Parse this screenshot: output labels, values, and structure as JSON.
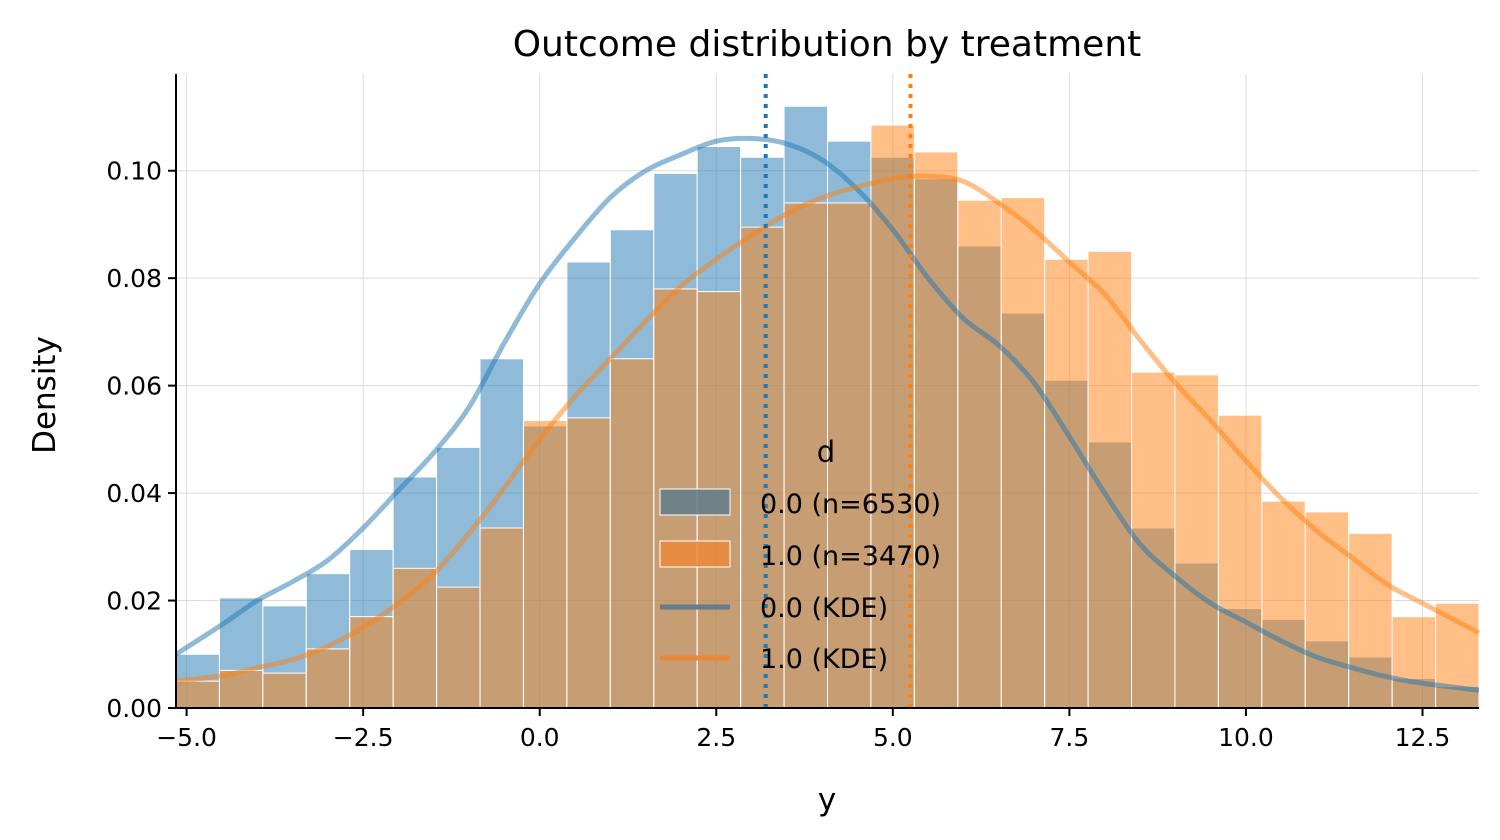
{
  "chart_data": {
    "type": "bar",
    "title": "Outcome distribution by treatment",
    "xlabel": "y",
    "ylabel": "Density",
    "xlim": [
      -5.15,
      13.3
    ],
    "ylim": [
      0,
      0.118
    ],
    "grid": true,
    "bin_start": -5.15,
    "bin_width": 0.615,
    "xticks": [
      -5.0,
      -2.5,
      0.0,
      2.5,
      5.0,
      7.5,
      10.0,
      12.5
    ],
    "xtick_labels": [
      "−5.0",
      "−2.5",
      "0.0",
      "2.5",
      "5.0",
      "7.5",
      "10.0",
      "12.5"
    ],
    "yticks": [
      0.0,
      0.02,
      0.04,
      0.06,
      0.08,
      0.1
    ],
    "ytick_labels": [
      "0.00",
      "0.02",
      "0.04",
      "0.06",
      "0.08",
      "0.10"
    ],
    "series": [
      {
        "name": "0.0",
        "color": "#1f77b4",
        "n": 6530,
        "mean_line": 3.2,
        "hist": [
          0.01,
          0.0205,
          0.019,
          0.025,
          0.0295,
          0.043,
          0.0485,
          0.065,
          0.0525,
          0.083,
          0.089,
          0.0995,
          0.1045,
          0.1025,
          0.112,
          0.1055,
          0.1025,
          0.0985,
          0.086,
          0.0735,
          0.061,
          0.0495,
          0.0335,
          0.027,
          0.0185,
          0.0165,
          0.0125,
          0.0095,
          0.0055,
          0.004
        ],
        "kde_x": [
          -5.15,
          -4.5,
          -4.0,
          -3.5,
          -3.0,
          -2.5,
          -2.0,
          -1.5,
          -1.0,
          -0.5,
          0.0,
          0.5,
          1.0,
          1.5,
          2.0,
          2.5,
          3.0,
          3.5,
          4.0,
          4.5,
          5.0,
          5.5,
          6.0,
          6.5,
          7.0,
          7.5,
          8.0,
          8.5,
          9.0,
          9.5,
          10.0,
          10.5,
          11.0,
          11.5,
          12.0,
          12.5,
          13.3
        ],
        "kde_y": [
          0.01,
          0.0155,
          0.02,
          0.0235,
          0.0275,
          0.0335,
          0.0405,
          0.0475,
          0.056,
          0.068,
          0.079,
          0.0875,
          0.095,
          0.1,
          0.103,
          0.1055,
          0.106,
          0.105,
          0.102,
          0.0965,
          0.089,
          0.08,
          0.0725,
          0.0675,
          0.0605,
          0.0505,
          0.04,
          0.0305,
          0.0245,
          0.0195,
          0.016,
          0.0125,
          0.0095,
          0.0075,
          0.0058,
          0.0046,
          0.0033
        ]
      },
      {
        "name": "1.0",
        "color": "#ff7f0e",
        "n": 3470,
        "mean_line": 5.25,
        "hist": [
          0.005,
          0.007,
          0.0065,
          0.011,
          0.017,
          0.026,
          0.0225,
          0.0335,
          0.0535,
          0.054,
          0.065,
          0.078,
          0.0775,
          0.0895,
          0.094,
          0.094,
          0.1085,
          0.1035,
          0.0945,
          0.095,
          0.0835,
          0.085,
          0.0625,
          0.062,
          0.0545,
          0.0385,
          0.0365,
          0.0325,
          0.017,
          0.0195
        ],
        "kde_x": [
          -5.15,
          -4.5,
          -4.0,
          -3.5,
          -3.0,
          -2.5,
          -2.0,
          -1.5,
          -1.0,
          -0.5,
          0.0,
          0.5,
          1.0,
          1.5,
          2.0,
          2.5,
          3.0,
          3.5,
          4.0,
          4.5,
          5.0,
          5.5,
          6.0,
          6.5,
          7.0,
          7.5,
          8.0,
          8.5,
          9.0,
          9.5,
          10.0,
          10.5,
          11.0,
          11.5,
          12.0,
          12.5,
          13.3
        ],
        "kde_y": [
          0.005,
          0.006,
          0.0075,
          0.009,
          0.0115,
          0.015,
          0.0195,
          0.025,
          0.0325,
          0.041,
          0.05,
          0.058,
          0.065,
          0.072,
          0.0785,
          0.0835,
          0.088,
          0.092,
          0.095,
          0.097,
          0.0985,
          0.099,
          0.098,
          0.094,
          0.089,
          0.083,
          0.077,
          0.0685,
          0.0605,
          0.0535,
          0.046,
          0.039,
          0.033,
          0.028,
          0.023,
          0.0195,
          0.014
        ]
      }
    ],
    "legend": {
      "title": "d",
      "position": "center-bottom",
      "entries": [
        {
          "label": "0.0 (n=6530)",
          "kind": "patch",
          "color": "#607d8b"
        },
        {
          "label": "1.0 (n=3470)",
          "kind": "patch",
          "color": "#e8893a"
        },
        {
          "label": "0.0 (KDE)",
          "kind": "line",
          "color": "#607d8b"
        },
        {
          "label": "1.0 (KDE)",
          "kind": "line",
          "color": "#e8893a"
        }
      ]
    }
  }
}
